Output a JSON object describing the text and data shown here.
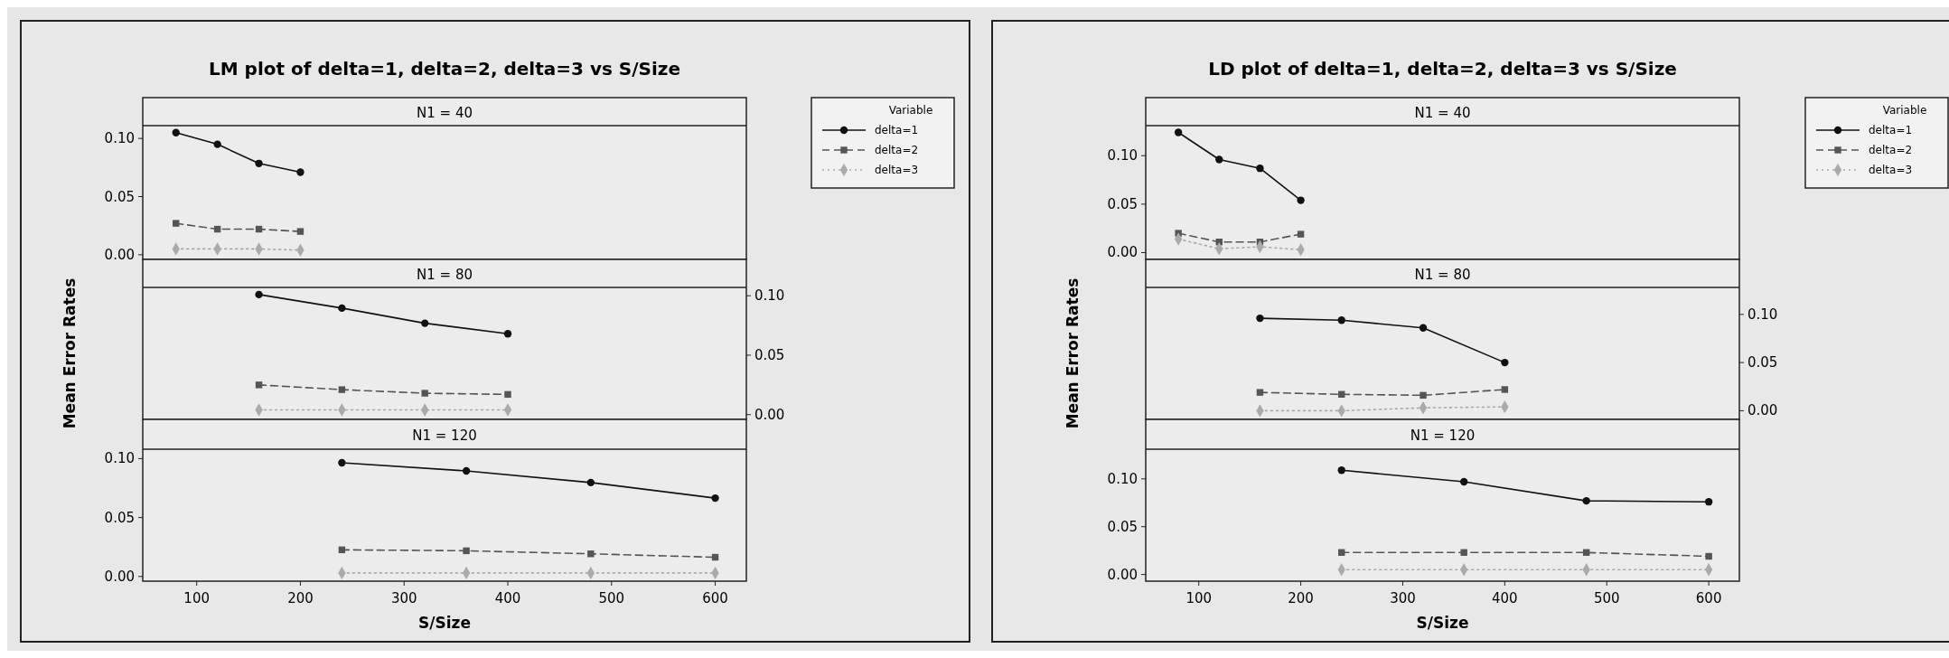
{
  "chart_data": [
    {
      "type": "line",
      "title": "LM plot of delta=1, delta=2, delta=3 vs S/Size",
      "subtitle": "N1 = 40",
      "legend_title": "Variable",
      "legend": "right",
      "tick_labels": "y",
      "x": [
        80,
        120,
        160,
        200
      ],
      "xlim": [
        48,
        630
      ],
      "ylim": [
        -0.004,
        0.111
      ],
      "yticks": [
        {
          "value": 0,
          "label": "0.00"
        },
        {
          "value": 0.05,
          "label": "0.05"
        },
        {
          "value": 0.1,
          "label": "0.10"
        }
      ],
      "series": [
        {
          "name": "delta=1",
          "color": "#111111",
          "marker": "circle",
          "line_style": "solid",
          "values": [
            0.105,
            0.095,
            0.0785,
            0.071
          ]
        },
        {
          "name": "delta=2",
          "color": "#555555",
          "marker": "square",
          "line_style": "dashed",
          "values": [
            0.027,
            0.022,
            0.022,
            0.02
          ]
        },
        {
          "name": "delta=3",
          "color": "#aaaaaa",
          "marker": "diamond",
          "line_style": "dotted",
          "values": [
            0.005,
            0.005,
            0.005,
            0.004
          ]
        }
      ]
    },
    {
      "type": "line",
      "subtitle": "N1 = 80",
      "ylabel": "Mean Error Rates",
      "tick_labels": "y",
      "x": [
        160,
        240,
        320,
        400
      ],
      "xlim": [
        48,
        630
      ],
      "ylim": [
        -0.004,
        0.107
      ],
      "yticks": [
        {
          "value": 0,
          "label": "0.00"
        },
        {
          "value": 0.05,
          "label": "0.05"
        },
        {
          "value": 0.1,
          "label": "0.10"
        }
      ],
      "series": [
        {
          "color": "#111111",
          "marker": "circle",
          "line_style": "solid",
          "values": [
            0.101,
            0.0896,
            0.0769,
            0.068
          ]
        },
        {
          "color": "#555555",
          "marker": "square",
          "line_style": "dashed",
          "values": [
            0.025,
            0.021,
            0.018,
            0.017
          ]
        },
        {
          "color": "#aaaaaa",
          "marker": "diamond",
          "line_style": "dotted",
          "values": [
            0.004,
            0.004,
            0.004,
            0.004
          ]
        }
      ]
    },
    {
      "type": "line",
      "subtitle": "N1 = 120",
      "xlabel": "S/Size",
      "x": [
        240,
        360,
        480,
        600
      ],
      "xlim": [
        48,
        630
      ],
      "ylim": [
        -0.004,
        0.108
      ],
      "xticks": [
        100,
        200,
        300,
        400,
        500,
        600
      ],
      "yticks": [
        {
          "value": 0,
          "label": "0.00"
        },
        {
          "value": 0.05,
          "label": "0.05"
        },
        {
          "value": 0.1,
          "label": "0.10"
        }
      ],
      "series": [
        {
          "color": "#111111",
          "marker": "circle",
          "line_style": "solid",
          "values": [
            0.0965,
            0.0896,
            0.0797,
            0.0665
          ]
        },
        {
          "color": "#555555",
          "marker": "square",
          "line_style": "dashed",
          "values": [
            0.0226,
            0.0218,
            0.0192,
            0.0163
          ]
        },
        {
          "color": "#aaaaaa",
          "marker": "diamond",
          "line_style": "dotted",
          "values": [
            0.003,
            0.003,
            0.003,
            0.003
          ]
        }
      ]
    },
    {
      "type": "line",
      "title": "LD plot of delta=1, delta=2, delta=3 vs S/Size",
      "subtitle": "N1 = 40",
      "legend_title": "Variable",
      "legend": "right",
      "tick_labels": "y",
      "x": [
        80,
        120,
        160,
        200
      ],
      "xlim": [
        48,
        630
      ],
      "ylim": [
        -0.007,
        0.131
      ],
      "yticks": [
        {
          "value": 0,
          "label": "0.00"
        },
        {
          "value": 0.05,
          "label": "0.05"
        },
        {
          "value": 0.1,
          "label": "0.10"
        }
      ],
      "series": [
        {
          "name": "delta=1",
          "color": "#111111",
          "marker": "circle",
          "line_style": "solid",
          "values": [
            0.124,
            0.096,
            0.087,
            0.054
          ]
        },
        {
          "name": "delta=2",
          "color": "#555555",
          "marker": "square",
          "line_style": "dashed",
          "values": [
            0.02,
            0.011,
            0.011,
            0.019
          ]
        },
        {
          "name": "delta=3",
          "color": "#aaaaaa",
          "marker": "diamond",
          "line_style": "dotted",
          "values": [
            0.014,
            0.004,
            0.006,
            0.003
          ]
        }
      ]
    },
    {
      "type": "line",
      "subtitle": "N1 = 80",
      "ylabel": "Mean Error Rates",
      "tick_labels": "y",
      "x": [
        160,
        240,
        320,
        400
      ],
      "xlim": [
        48,
        630
      ],
      "ylim": [
        -0.009,
        0.128
      ],
      "yticks": [
        {
          "value": 0,
          "label": "0.00"
        },
        {
          "value": 0.05,
          "label": "0.05"
        },
        {
          "value": 0.1,
          "label": "0.10"
        }
      ],
      "series": [
        {
          "color": "#111111",
          "marker": "circle",
          "line_style": "solid",
          "values": [
            0.096,
            0.094,
            0.086,
            0.05
          ]
        },
        {
          "color": "#555555",
          "marker": "square",
          "line_style": "dashed",
          "values": [
            0.019,
            0.017,
            0.016,
            0.022
          ]
        },
        {
          "color": "#aaaaaa",
          "marker": "diamond",
          "line_style": "dotted",
          "values": [
            0,
            0,
            0.003,
            0.004
          ]
        }
      ]
    },
    {
      "type": "line",
      "subtitle": "N1 = 120",
      "xlabel": "S/Size",
      "x": [
        240,
        360,
        480,
        600
      ],
      "xlim": [
        48,
        630
      ],
      "ylim": [
        -0.007,
        0.131
      ],
      "xticks": [
        100,
        200,
        300,
        400,
        500,
        600
      ],
      "yticks": [
        {
          "value": 0,
          "label": "0.00"
        },
        {
          "value": 0.05,
          "label": "0.05"
        },
        {
          "value": 0.1,
          "label": "0.10"
        }
      ],
      "series": [
        {
          "color": "#111111",
          "marker": "circle",
          "line_style": "solid",
          "values": [
            0.109,
            0.097,
            0.077,
            0.076
          ]
        },
        {
          "color": "#555555",
          "marker": "square",
          "line_style": "dashed",
          "values": [
            0.023,
            0.023,
            0.023,
            0.019
          ]
        },
        {
          "color": "#aaaaaa",
          "marker": "diamond",
          "line_style": "dotted",
          "values": [
            0.005,
            0.005,
            0.005,
            0.005
          ]
        }
      ]
    }
  ]
}
